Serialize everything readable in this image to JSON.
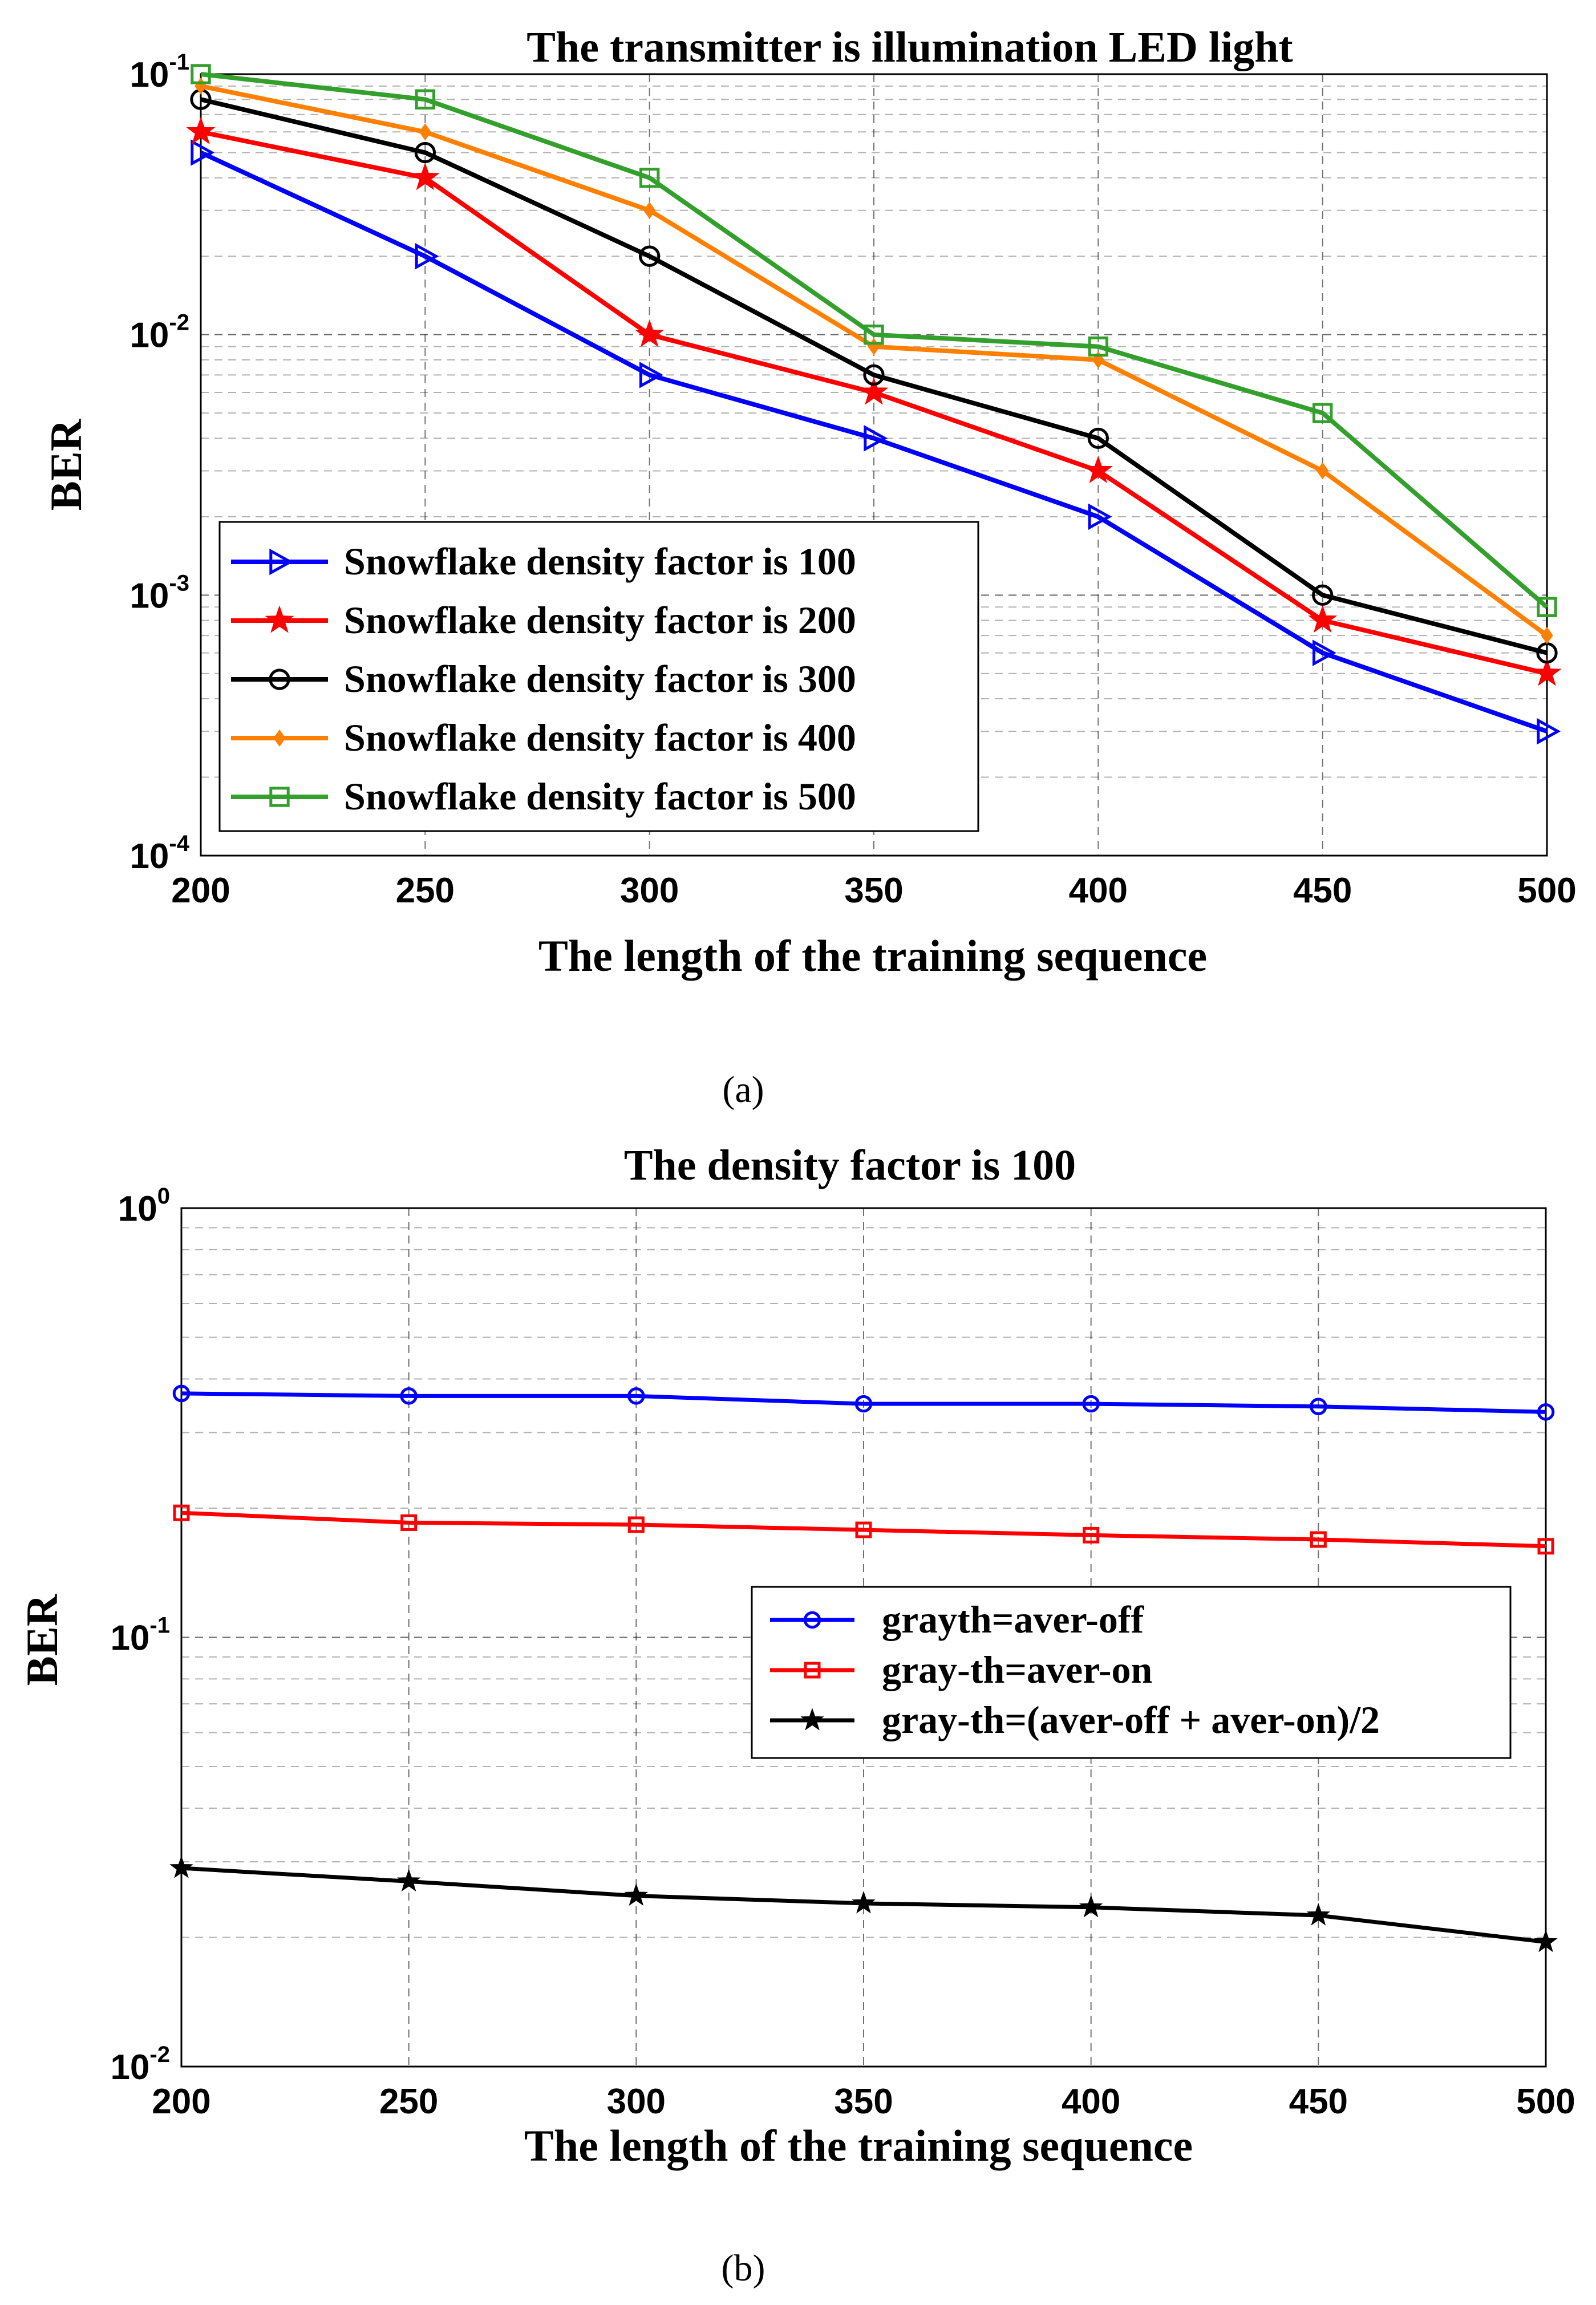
{
  "chart_data": [
    {
      "id": "a",
      "type": "line",
      "yscale": "log",
      "title": "The transmitter is illumination LED light",
      "xlabel": "The length of the training sequence",
      "ylabel": "BER",
      "caption": "(a)",
      "x": [
        200,
        250,
        300,
        350,
        400,
        450,
        500
      ],
      "xticks": [
        "200",
        "250",
        "300",
        "350",
        "400",
        "450",
        "500"
      ],
      "yexp": [
        -1,
        -2,
        -3,
        -4
      ],
      "ylim": [
        0.0001,
        0.1
      ],
      "grid": true,
      "legend": "bottom-left",
      "series": [
        {
          "name": "Snowflake density factor is 100",
          "color": "#0000ff",
          "marker": "triangle-right",
          "values": [
            0.05,
            0.02,
            0.007,
            0.004,
            0.002,
            0.0006,
            0.0003
          ]
        },
        {
          "name": "Snowflake density factor is 200",
          "color": "#ff0000",
          "marker": "star",
          "values": [
            0.06,
            0.04,
            0.01,
            0.006,
            0.003,
            0.0008,
            0.0005
          ]
        },
        {
          "name": "Snowflake density factor is 300",
          "color": "#000000",
          "marker": "circle",
          "values": [
            0.08,
            0.05,
            0.02,
            0.007,
            0.004,
            0.001,
            0.0006
          ]
        },
        {
          "name": "Snowflake density factor is 400",
          "color": "#ff8000",
          "marker": "diamond",
          "values": [
            0.09,
            0.06,
            0.03,
            0.009,
            0.008,
            0.003,
            0.0007
          ]
        },
        {
          "name": "Snowflake density factor is 500",
          "color": "#33a02c",
          "marker": "square",
          "values": [
            0.1,
            0.08,
            0.04,
            0.01,
            0.009,
            0.005,
            0.0009
          ]
        }
      ]
    },
    {
      "id": "b",
      "type": "line",
      "yscale": "log",
      "title": "The density factor is 100",
      "xlabel": "The length of the training sequence",
      "ylabel": "BER",
      "caption": "(b)",
      "x": [
        200,
        250,
        300,
        350,
        400,
        450,
        500
      ],
      "xticks": [
        "200",
        "250",
        "300",
        "350",
        "400",
        "450",
        "500"
      ],
      "yexp": [
        0,
        -1,
        -2
      ],
      "ylim": [
        0.01,
        1
      ],
      "grid": true,
      "legend": "center-right",
      "series": [
        {
          "name": "grayth=aver-off",
          "color": "#0000ff",
          "marker": "circle",
          "values": [
            0.37,
            0.365,
            0.365,
            0.35,
            0.35,
            0.345,
            0.335
          ]
        },
        {
          "name": "gray-th=aver-on",
          "color": "#ff0000",
          "marker": "square",
          "values": [
            0.195,
            0.185,
            0.183,
            0.178,
            0.173,
            0.169,
            0.163
          ]
        },
        {
          "name": "gray-th=(aver-off + aver-on)/2",
          "color": "#000000",
          "marker": "star",
          "values": [
            0.029,
            0.027,
            0.025,
            0.024,
            0.0235,
            0.0225,
            0.0195
          ]
        }
      ]
    }
  ]
}
